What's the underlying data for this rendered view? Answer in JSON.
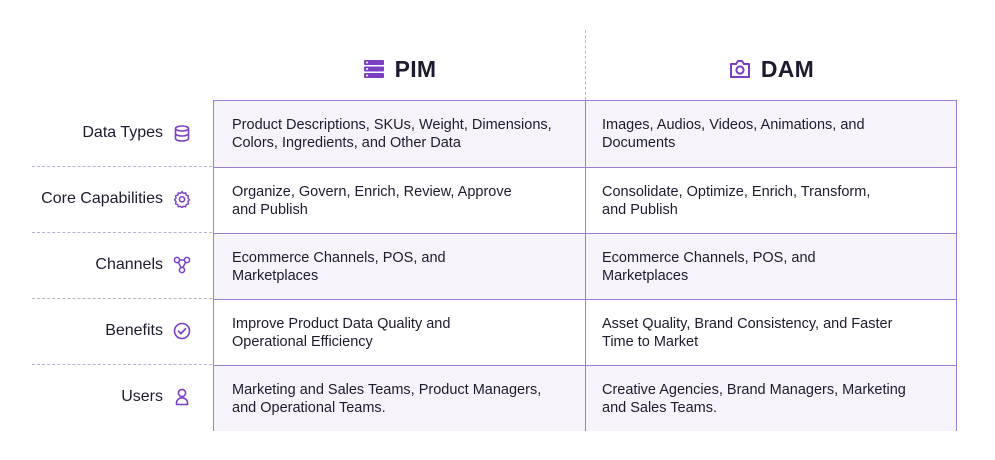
{
  "colors": {
    "accent": "#7b3fc4",
    "border": "#9b7ed6",
    "shade": "#f6f3fb",
    "text": "#1e1b2e"
  },
  "headers": {
    "pim": {
      "label": "PIM",
      "icon": "database-list-icon"
    },
    "dam": {
      "label": "DAM",
      "icon": "camera-icon"
    }
  },
  "rows": [
    {
      "label": "Data Types",
      "icon": "database-icon",
      "pim": "Product Descriptions, SKUs, Weight, Dimensions,\nColors, Ingredients, and Other Data",
      "dam": "Images, Audios, Videos, Animations, and\nDocuments"
    },
    {
      "label": "Core Capabilities",
      "icon": "gear-icon",
      "pim": "Organize, Govern, Enrich, Review, Approve\nand Publish",
      "dam": "Consolidate, Optimize, Enrich, Transform,\nand Publish"
    },
    {
      "label": "Channels",
      "icon": "network-nodes-icon",
      "pim": "Ecommerce Channels, POS, and\nMarketplaces",
      "dam": "Ecommerce Channels, POS, and\nMarketplaces"
    },
    {
      "label": "Benefits",
      "icon": "check-circle-icon",
      "pim": "Improve Product Data Quality and\nOperational Efficiency",
      "dam": "Asset Quality, Brand Consistency, and Faster\nTime to Market"
    },
    {
      "label": "Users",
      "icon": "user-icon",
      "pim": "Marketing and Sales Teams, Product Managers,\nand Operational Teams.",
      "dam": "Creative Agencies, Brand Managers, Marketing\nand Sales Teams."
    }
  ]
}
